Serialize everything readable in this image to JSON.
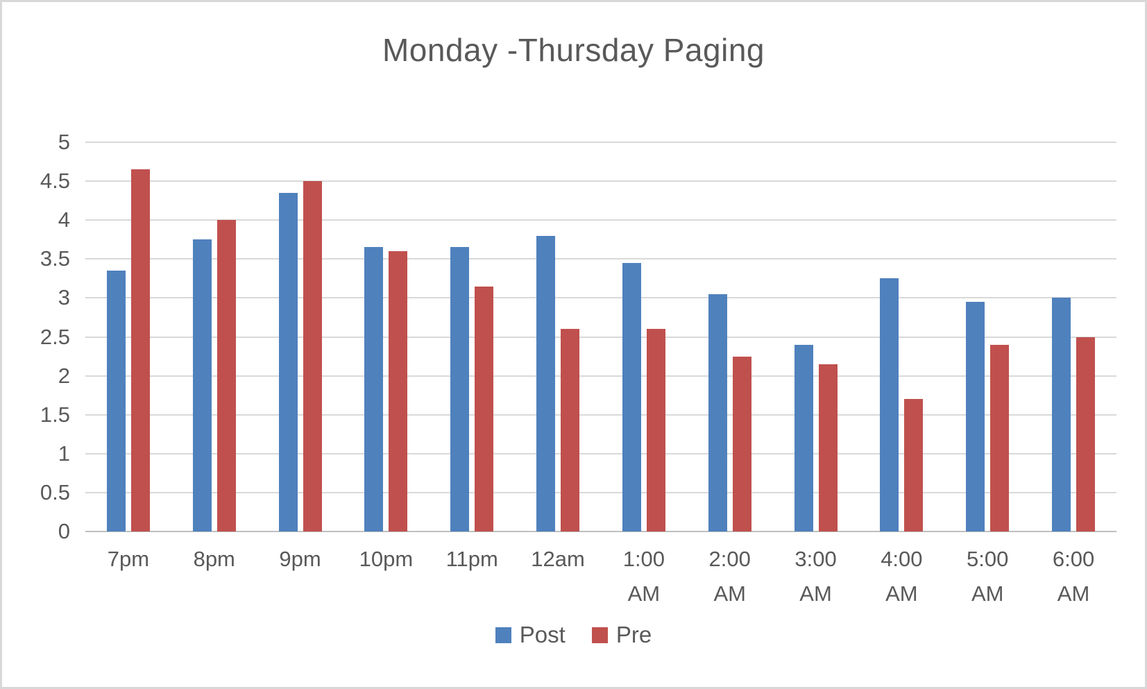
{
  "frame": {
    "background_color": "#FFFFFF",
    "border_color": "#D8D8D8"
  },
  "chart_data": {
    "type": "bar",
    "title": "Monday -Thursday Paging",
    "title_color": "#595959",
    "categories": [
      {
        "line1": "7pm",
        "line2": ""
      },
      {
        "line1": "8pm",
        "line2": ""
      },
      {
        "line1": "9pm",
        "line2": ""
      },
      {
        "line1": "10pm",
        "line2": ""
      },
      {
        "line1": "11pm",
        "line2": ""
      },
      {
        "line1": "12am",
        "line2": ""
      },
      {
        "line1": "1:00",
        "line2": "AM"
      },
      {
        "line1": "2:00",
        "line2": "AM"
      },
      {
        "line1": "3:00",
        "line2": "AM"
      },
      {
        "line1": "4:00",
        "line2": "AM"
      },
      {
        "line1": "5:00",
        "line2": "AM"
      },
      {
        "line1": "6:00",
        "line2": "AM"
      }
    ],
    "series": [
      {
        "name": "Post",
        "color": "#4F81BD",
        "values": [
          3.35,
          3.75,
          4.35,
          3.65,
          3.65,
          3.8,
          3.45,
          3.05,
          2.4,
          3.25,
          2.95,
          3.0
        ]
      },
      {
        "name": "Pre",
        "color": "#C0504D",
        "values": [
          4.65,
          4.0,
          4.5,
          3.6,
          3.15,
          2.6,
          2.6,
          2.25,
          2.15,
          1.7,
          2.4,
          2.5
        ]
      }
    ],
    "ylim": [
      0,
      5
    ],
    "ytick_step": 0.5,
    "yticks": [
      "5",
      "4.5",
      "4",
      "3.5",
      "3",
      "2.5",
      "2",
      "1.5",
      "1",
      "0.5",
      "0"
    ],
    "grid": true,
    "gridline_color": "#D9D9D9",
    "axis_line_color": "#BFBFBF",
    "tick_label_color": "#595959",
    "legend_position": "bottom"
  }
}
